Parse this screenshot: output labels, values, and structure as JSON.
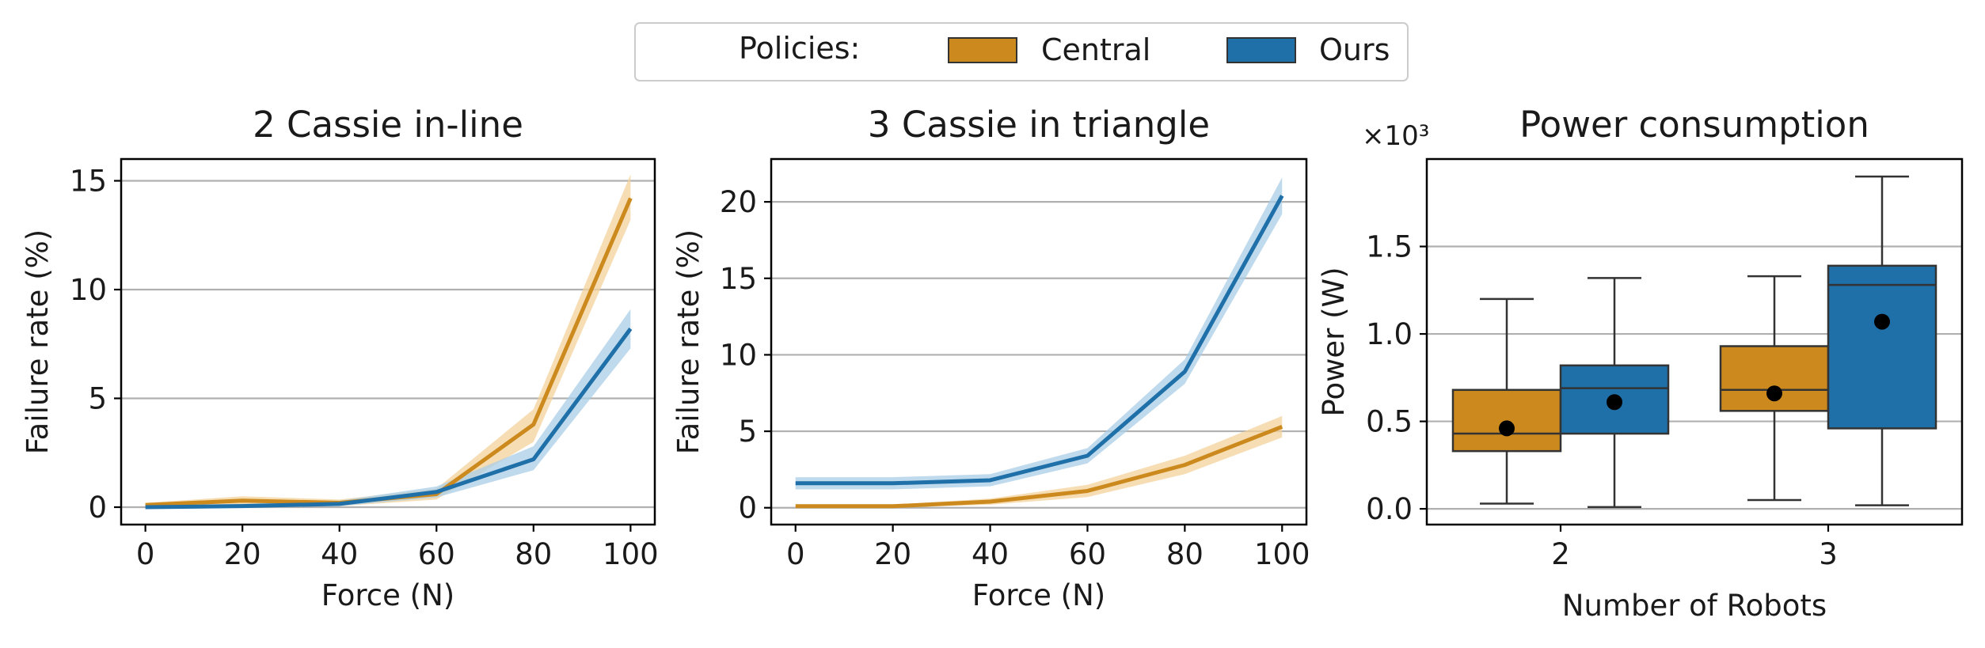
{
  "legend": {
    "title": "Policies:",
    "entries": [
      {
        "label": "Central",
        "color": "#CC8A1E"
      },
      {
        "label": "Ours",
        "color": "#1F6FA8"
      }
    ]
  },
  "colors": {
    "central": "#CC8A1E",
    "ours": "#1F6FA8",
    "central_band": "#F3D29A",
    "ours_band": "#A9CDE7",
    "grid": "#b0b0b0",
    "axis": "#000000",
    "box_edge": "#333333",
    "mean_marker": "#000000"
  },
  "chart_data": [
    {
      "type": "line",
      "title": "2 Cassie in-line",
      "xlabel": "Force (N)",
      "ylabel": "Failure rate (%)",
      "x": [
        0,
        20,
        40,
        60,
        80,
        100
      ],
      "xticks": [
        "0",
        "20",
        "40",
        "60",
        "80",
        "100"
      ],
      "yticks": [
        "0",
        "5",
        "10",
        "15"
      ],
      "xlim": [
        -5,
        105
      ],
      "ylim": [
        -0.8,
        16.0
      ],
      "grid": "horizontal",
      "series": [
        {
          "name": "Central",
          "values": [
            0.1,
            0.3,
            0.2,
            0.6,
            3.8,
            14.2
          ],
          "band_low": [
            0.0,
            0.1,
            0.05,
            0.35,
            3.0,
            13.2
          ],
          "band_high": [
            0.2,
            0.5,
            0.35,
            0.85,
            4.5,
            15.3
          ]
        },
        {
          "name": "Ours",
          "values": [
            0.0,
            0.05,
            0.15,
            0.7,
            2.2,
            8.2
          ],
          "band_low": [
            0.0,
            0.0,
            0.05,
            0.45,
            1.7,
            7.3
          ],
          "band_high": [
            0.1,
            0.15,
            0.3,
            0.95,
            2.8,
            9.1
          ]
        }
      ]
    },
    {
      "type": "line",
      "title": "3 Cassie in triangle",
      "xlabel": "Force (N)",
      "ylabel": "Failure rate (%)",
      "x": [
        0,
        20,
        40,
        60,
        80,
        100
      ],
      "xticks": [
        "0",
        "20",
        "40",
        "60",
        "80",
        "100"
      ],
      "yticks": [
        "0",
        "5",
        "10",
        "15",
        "20"
      ],
      "xlim": [
        -5,
        105
      ],
      "ylim": [
        -1.1,
        22.8
      ],
      "grid": "horizontal",
      "series": [
        {
          "name": "Central",
          "values": [
            0.1,
            0.1,
            0.4,
            1.1,
            2.8,
            5.3
          ],
          "band_low": [
            0.0,
            0.0,
            0.2,
            0.7,
            2.2,
            4.6
          ],
          "band_high": [
            0.2,
            0.2,
            0.6,
            1.5,
            3.4,
            6.0
          ]
        },
        {
          "name": "Ours",
          "values": [
            1.6,
            1.6,
            1.8,
            3.4,
            8.9,
            20.4
          ],
          "band_low": [
            1.2,
            1.2,
            1.4,
            2.9,
            8.1,
            19.2
          ],
          "band_high": [
            2.0,
            2.0,
            2.2,
            3.9,
            9.7,
            21.6
          ]
        }
      ]
    },
    {
      "type": "box",
      "title": "Power consumption",
      "xlabel": "Number of Robots",
      "ylabel": "Power (W)",
      "scale_label": "×10³",
      "categories": [
        "2",
        "3"
      ],
      "yticks": [
        "0.0",
        "0.5",
        "1.0",
        "1.5"
      ],
      "ylim": [
        -0.09,
        2.0
      ],
      "grid": "horizontal",
      "series": [
        {
          "name": "Central",
          "boxes": [
            {
              "min": 0.03,
              "q1": 0.33,
              "median": 0.43,
              "q3": 0.68,
              "max": 1.2,
              "mean": 0.46
            },
            {
              "min": 0.05,
              "q1": 0.56,
              "median": 0.68,
              "q3": 0.93,
              "max": 1.33,
              "mean": 0.66
            }
          ]
        },
        {
          "name": "Ours",
          "boxes": [
            {
              "min": 0.01,
              "q1": 0.43,
              "median": 0.69,
              "q3": 0.82,
              "max": 1.32,
              "mean": 0.61
            },
            {
              "min": 0.02,
              "q1": 0.46,
              "median": 1.28,
              "q3": 1.39,
              "max": 1.9,
              "mean": 1.07
            }
          ]
        }
      ]
    }
  ]
}
